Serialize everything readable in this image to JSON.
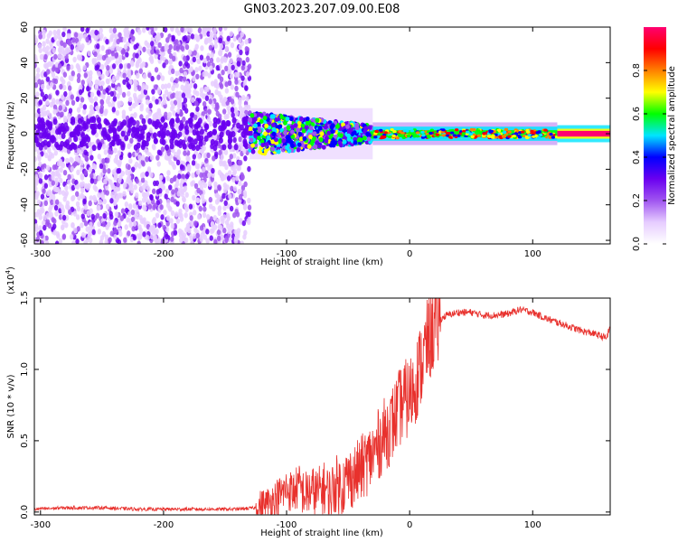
{
  "figure": {
    "title": "GN03.2023.207.09.00.E08"
  },
  "chart_data": [
    {
      "type": "heatmap",
      "xlabel": "Height of straight line (km)",
      "ylabel": "Frequency (Hz)",
      "xlim": [
        -305,
        163
      ],
      "ylim": [
        -62,
        60
      ],
      "xticks": [
        -300,
        -200,
        -100,
        0,
        100
      ],
      "xtick_labels": [
        "-300",
        "-200",
        "-100",
        "0",
        "100"
      ],
      "yticks": [
        -60,
        -40,
        -20,
        0,
        20,
        40,
        60
      ],
      "ytick_labels": [
        "-60",
        "-40",
        "-20",
        "0",
        "20",
        "40",
        "60"
      ],
      "colorbar": {
        "label": "Normalized spectral amplitude",
        "range": [
          0.0,
          1.0
        ],
        "ticks": [
          0.0,
          0.2,
          0.4,
          0.6,
          0.8
        ],
        "tick_labels": [
          "0.0",
          "0.2",
          "0.4",
          "0.6",
          "0.8"
        ],
        "colormap": [
          "#ffffff",
          "#e6ccff",
          "#a055f0",
          "#6a00f0",
          "#0000ff",
          "#00e5ff",
          "#00ff00",
          "#ffff00",
          "#ff8000",
          "#ff0000",
          "#ff0070"
        ]
      },
      "regions": [
        {
          "x_range": [
            -305,
            -130
          ],
          "freq_range": [
            -62,
            60
          ],
          "amplitude": 0.05,
          "description_key": "broadband"
        },
        {
          "x_range": [
            -130,
            -30
          ],
          "freq_range": [
            -12,
            12
          ],
          "amplitude": 0.3
        },
        {
          "x_range": [
            -30,
            120
          ],
          "freq_range": [
            -4,
            4
          ],
          "amplitude": 0.45
        },
        {
          "x_range": [
            120,
            163
          ],
          "freq_range": [
            -2,
            2
          ],
          "amplitude": 0.95
        }
      ]
    },
    {
      "type": "line",
      "xlabel": "Height of straight line (km)",
      "ylabel": "SNR (10 * v/v)",
      "y_multiplier_label": "(x10",
      "y_multiplier_exp": "4",
      "y_multiplier_close": ")",
      "xlim": [
        -305,
        163
      ],
      "ylim": [
        -0.02,
        1.5
      ],
      "xticks": [
        -300,
        -200,
        -100,
        0,
        100
      ],
      "xtick_labels": [
        "-300",
        "-200",
        "-100",
        "0",
        "100"
      ],
      "yticks": [
        0.0,
        0.5,
        1.0,
        1.5
      ],
      "ytick_labels": [
        "0.0",
        "0.5",
        "1.0",
        "1.5"
      ],
      "color": "#e8312d",
      "series": [
        {
          "x": [
            -305,
            -280,
            -250,
            -220,
            -200,
            -180,
            -160,
            -140,
            -125,
            -115,
            -105,
            -100,
            -95,
            -90,
            -85,
            -80,
            -75,
            -70,
            -65,
            -60,
            -55,
            -50,
            -45,
            -40,
            -35,
            -30,
            -25,
            -20,
            -15,
            -10,
            -5,
            0,
            5,
            10,
            15,
            20,
            25,
            30,
            40,
            50,
            60,
            70,
            80,
            90,
            100,
            110,
            120,
            130,
            140,
            150,
            160,
            163
          ],
          "y": [
            0.02,
            0.03,
            0.03,
            0.02,
            0.02,
            0.02,
            0.02,
            0.02,
            0.03,
            0.06,
            0.12,
            0.16,
            0.14,
            0.18,
            0.12,
            0.15,
            0.13,
            0.17,
            0.12,
            0.2,
            0.18,
            0.24,
            0.25,
            0.3,
            0.35,
            0.4,
            0.48,
            0.55,
            0.6,
            0.7,
            0.78,
            0.8,
            0.92,
            1.05,
            1.2,
            1.3,
            1.35,
            1.38,
            1.4,
            1.4,
            1.38,
            1.38,
            1.39,
            1.42,
            1.4,
            1.36,
            1.33,
            1.3,
            1.27,
            1.25,
            1.22,
            1.3
          ]
        }
      ]
    }
  ]
}
